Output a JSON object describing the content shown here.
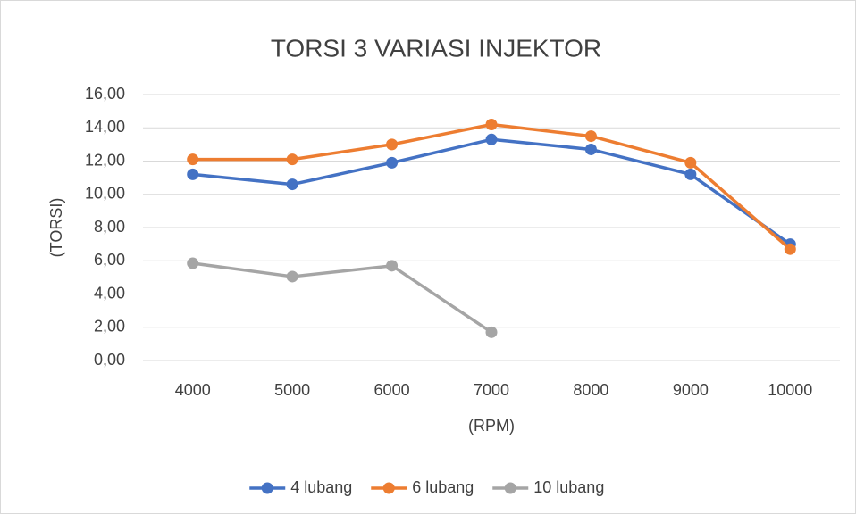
{
  "chart_data": {
    "type": "line",
    "title": "TORSI 3 VARIASI INJEKTOR",
    "x_label": "(RPM)",
    "y_label": "(TORSI)",
    "categories": [
      "4000",
      "5000",
      "6000",
      "7000",
      "8000",
      "9000",
      "10000"
    ],
    "series": [
      {
        "name": "4 lubang",
        "color": "#4472c4",
        "values": [
          11.2,
          10.6,
          11.9,
          13.3,
          12.7,
          11.2,
          7.0
        ]
      },
      {
        "name": "6 lubang",
        "color": "#ed7d31",
        "values": [
          12.1,
          12.1,
          13.0,
          14.2,
          13.5,
          11.9,
          6.7
        ]
      },
      {
        "name": "10 lubang",
        "color": "#a5a5a5",
        "values": [
          5.85,
          5.05,
          5.7,
          1.7,
          null,
          null,
          null
        ]
      }
    ],
    "ylim": [
      0,
      16
    ],
    "yticks": [
      {
        "value": 0,
        "label": "0,00"
      },
      {
        "value": 2,
        "label": "2,00"
      },
      {
        "value": 4,
        "label": "4,00"
      },
      {
        "value": 6,
        "label": "6,00"
      },
      {
        "value": 8,
        "label": "8,00"
      },
      {
        "value": 10,
        "label": "10,00"
      },
      {
        "value": 12,
        "label": "12,00"
      },
      {
        "value": 14,
        "label": "14,00"
      },
      {
        "value": 16,
        "label": "16,00"
      }
    ],
    "grid": true,
    "legend": "bottom"
  }
}
